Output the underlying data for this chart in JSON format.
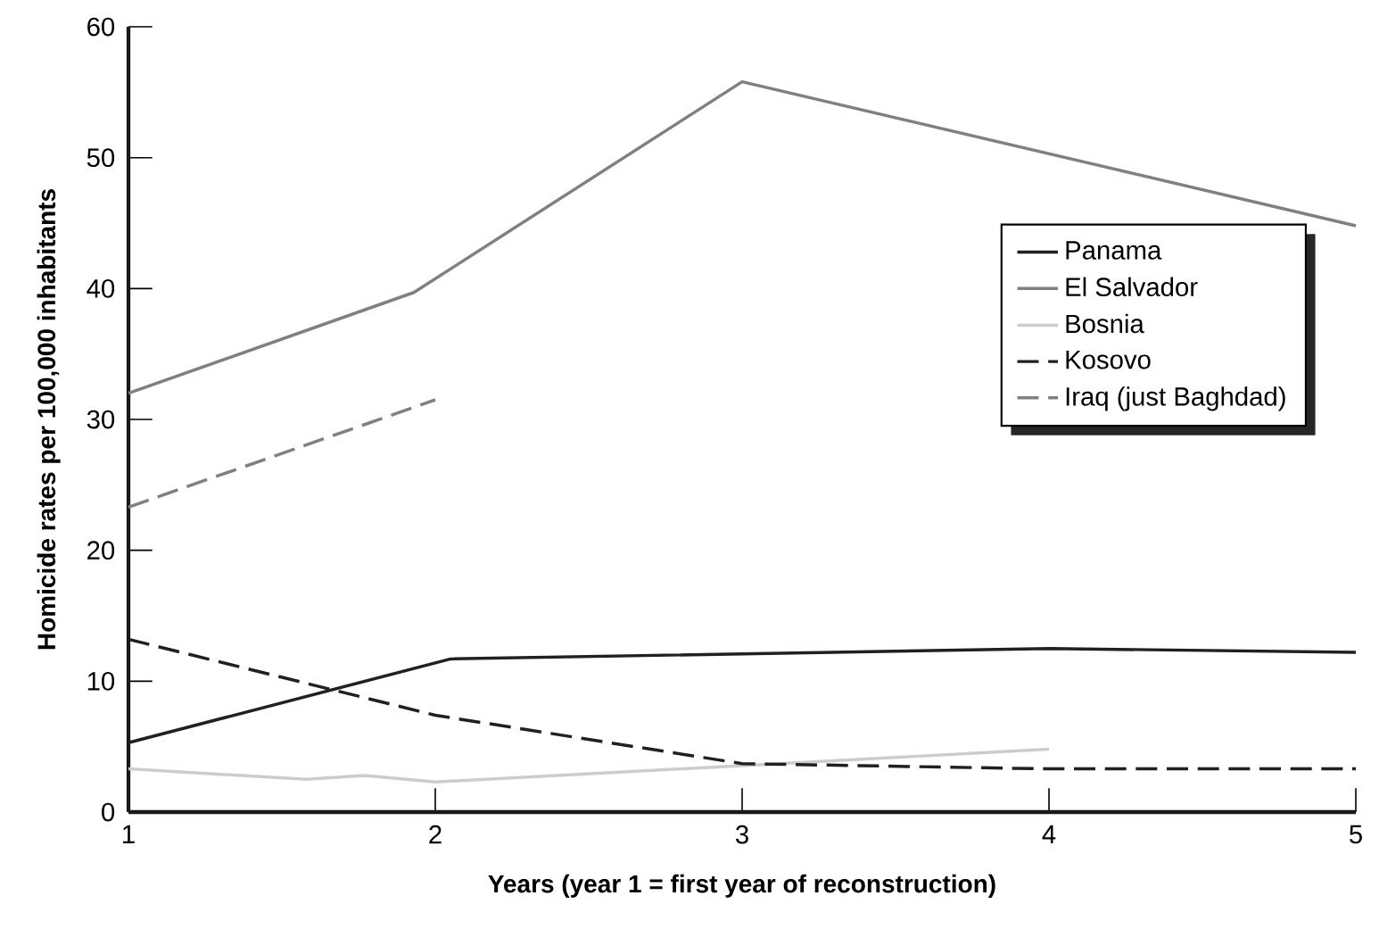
{
  "chart_data": {
    "type": "line",
    "xlabel": "Years (year 1 = first year of reconstruction)",
    "ylabel": "Homicide rates per 100,000 inhabitants",
    "xlim": [
      1,
      5
    ],
    "xticks": [
      1,
      2,
      3,
      4,
      5
    ],
    "ylim": [
      0,
      60
    ],
    "yticks": [
      0,
      10,
      20,
      30,
      40,
      50,
      60
    ],
    "grid": false,
    "legend": "right",
    "marker": "none",
    "series": [
      {
        "name": "Panama",
        "color": "#231f20",
        "line_style": "solid",
        "x": [
          1,
          2.05,
          4,
          5
        ],
        "values": [
          5.3,
          11.7,
          12.5,
          12.2
        ]
      },
      {
        "name": "El Salvador",
        "color": "#808080",
        "line_style": "solid",
        "x": [
          1,
          1.93,
          3,
          5
        ],
        "values": [
          32,
          39.7,
          55.8,
          44.8
        ]
      },
      {
        "name": "Bosnia",
        "color": "#cccccc",
        "line_style": "solid",
        "x": [
          1,
          1.58,
          1.77,
          2,
          4
        ],
        "values": [
          3.3,
          2.5,
          2.8,
          2.3,
          4.8
        ]
      },
      {
        "name": "Kosovo",
        "color": "#231f20",
        "line_style": "dashed",
        "x": [
          1,
          2,
          3,
          4,
          5
        ],
        "values": [
          13.2,
          7.4,
          3.7,
          3.3,
          3.3
        ]
      },
      {
        "name": "Iraq (just Baghdad)",
        "color": "#808080",
        "line_style": "dashed",
        "x": [
          1,
          2
        ],
        "values": [
          23.3,
          31.5
        ]
      }
    ]
  }
}
